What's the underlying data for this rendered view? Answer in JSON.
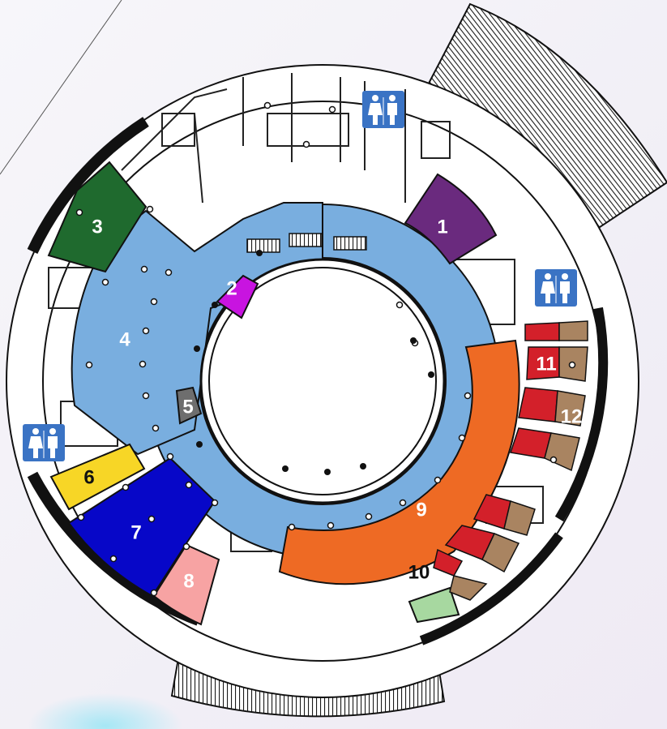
{
  "zones": [
    {
      "id": "1",
      "label": "1",
      "color": "#6a2a7e",
      "text_color": "#ffffff"
    },
    {
      "id": "2",
      "label": "2",
      "color": "#c814e0",
      "text_color": "#ffffff"
    },
    {
      "id": "3",
      "label": "3",
      "color": "#1f6a2e",
      "text_color": "#ffffff"
    },
    {
      "id": "4",
      "label": "4",
      "color": "#79aedf",
      "text_color": "#ffffff"
    },
    {
      "id": "5",
      "label": "5",
      "color": "#6e6e6e",
      "text_color": "#ffffff"
    },
    {
      "id": "6",
      "label": "6",
      "color": "#f7d626",
      "text_color": "#111111"
    },
    {
      "id": "7",
      "label": "7",
      "color": "#0707c8",
      "text_color": "#ffffff"
    },
    {
      "id": "8",
      "label": "8",
      "color": "#f7a3a3",
      "text_color": "#ffffff"
    },
    {
      "id": "9",
      "label": "9",
      "color": "#ee6a24",
      "text_color": "#ffffff"
    },
    {
      "id": "10",
      "label": "10",
      "color": "#a7d8a0",
      "text_color": "#111111"
    },
    {
      "id": "11",
      "label": "11",
      "color": "#d3202a",
      "text_color": "#ffffff"
    },
    {
      "id": "12",
      "label": "12",
      "color": "#a98461",
      "text_color": "#ffffff"
    }
  ],
  "icons": {
    "restroom": "restroom-icon"
  },
  "colors": {
    "wall": "#111111",
    "floor": "#ffffff",
    "seating": "#222222",
    "restroom_icon_bg": "#3a73c4"
  }
}
